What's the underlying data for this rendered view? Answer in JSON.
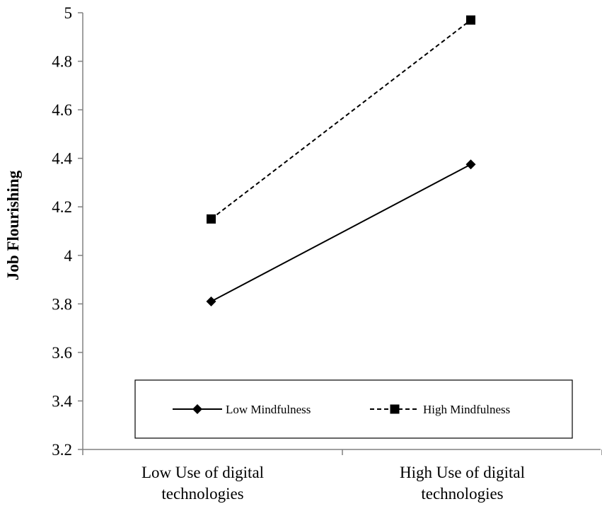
{
  "chart_data": {
    "type": "line",
    "title": "",
    "xlabel": "",
    "ylabel": "Job Flourishing",
    "categories": [
      [
        "Low Use of digital",
        "technologies"
      ],
      [
        "High Use of digital",
        "technologies"
      ]
    ],
    "ylim": [
      3.2,
      5.0
    ],
    "yticks": [
      "3.2",
      "3.4",
      "3.6",
      "3.8",
      "4",
      "4.2",
      "4.4",
      "4.6",
      "4.8",
      "5"
    ],
    "ytick_values": [
      3.2,
      3.4,
      3.6,
      3.8,
      4.0,
      4.2,
      4.4,
      4.6,
      4.8,
      5.0
    ],
    "grid": false,
    "legend_position": "bottom-inside",
    "series": [
      {
        "name": "Low Mindfulness",
        "values": [
          3.81,
          4.375
        ],
        "line_style": "solid",
        "marker": "diamond",
        "color": "#000000"
      },
      {
        "name": "High Mindfulness",
        "values": [
          4.15,
          4.97
        ],
        "line_style": "dashed",
        "marker": "square",
        "color": "#000000"
      }
    ]
  }
}
